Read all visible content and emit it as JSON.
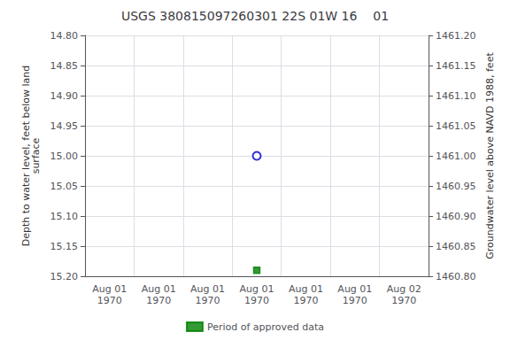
{
  "chart_data": {
    "type": "scatter",
    "title": "USGS 380815097260301 22S 01W 16    01",
    "categories": [
      "Aug 01\n1970",
      "Aug 01\n1970",
      "Aug 01\n1970",
      "Aug 01\n1970",
      "Aug 01\n1970",
      "Aug 01\n1970",
      "Aug 02\n1970"
    ],
    "series": [
      {
        "color": "#0000cc",
        "marker": "open_circle",
        "values": [
          null,
          null,
          null,
          15.0,
          null,
          null,
          null
        ]
      },
      {
        "name": "Period of approved data",
        "color": "#008000",
        "marker": "square",
        "values": [
          null,
          null,
          null,
          15.19,
          null,
          null,
          null
        ]
      }
    ],
    "ylabel": "Depth to water level, feet below land\nsurface",
    "ylim": [
      15.2,
      14.8
    ],
    "yticks": [
      {
        "value": 14.8,
        "label": "14.80"
      },
      {
        "value": 14.85,
        "label": "14.85"
      },
      {
        "value": 14.9,
        "label": "14.90"
      },
      {
        "value": 14.95,
        "label": "14.95"
      },
      {
        "value": 15.0,
        "label": "15.00"
      },
      {
        "value": 15.05,
        "label": "15.05"
      },
      {
        "value": 15.1,
        "label": "15.10"
      },
      {
        "value": 15.15,
        "label": "15.15"
      },
      {
        "value": 15.2,
        "label": "15.20"
      }
    ],
    "y2label": "Groundwater level above NAVD 1988, feet",
    "y2lim": [
      1460.8,
      1461.2
    ],
    "y2ticks": [
      {
        "value": 1461.2,
        "label": "1461.20"
      },
      {
        "value": 1461.15,
        "label": "1461.15"
      },
      {
        "value": 1461.1,
        "label": "1461.10"
      },
      {
        "value": 1461.05,
        "label": "1461.05"
      },
      {
        "value": 1461.0,
        "label": "1461.00"
      },
      {
        "value": 1460.95,
        "label": "1460.95"
      },
      {
        "value": 1460.9,
        "label": "1460.90"
      },
      {
        "value": 1460.85,
        "label": "1460.85"
      },
      {
        "value": 1460.8,
        "label": "1460.80"
      }
    ],
    "grid": true,
    "legend": "bottom"
  }
}
